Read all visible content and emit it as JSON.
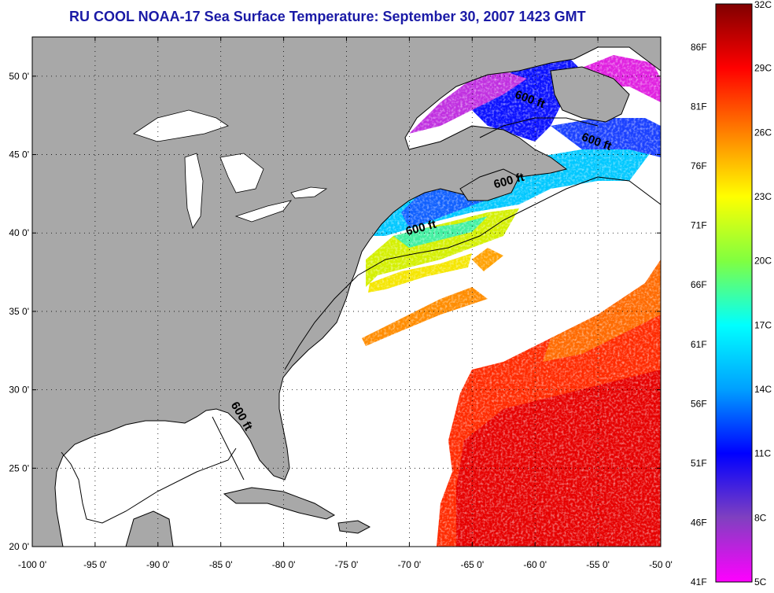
{
  "title": "RU COOL  NOAA-17  Sea Surface Temperature:  September 30, 2007 1423 GMT",
  "colors": {
    "land": "#a8a8a8",
    "nodata": "#ffffff",
    "title": "#1a1aa6"
  },
  "map": {
    "lon_range": [
      -100,
      -50
    ],
    "lat_range": [
      20,
      52.5
    ],
    "x_ticks": [
      "-100 0'",
      "-95 0'",
      "-90 0'",
      "-85 0'",
      "-80 0'",
      "-75 0'",
      "-70 0'",
      "-65 0'",
      "-60 0'",
      "-55 0'",
      "-50 0'"
    ],
    "y_ticks": [
      "50 0'",
      "45 0'",
      "40 0'",
      "35 0'",
      "30 0'",
      "25 0'",
      "20 0'"
    ],
    "contour_labels": [
      {
        "text": "600 ft",
        "lon": -60.5,
        "lat": 48.3,
        "angle": 20
      },
      {
        "text": "600 ft",
        "lon": -55.2,
        "lat": 45.6,
        "angle": 20
      },
      {
        "text": "600 ft",
        "lon": -62.0,
        "lat": 43.1,
        "angle": -15
      },
      {
        "text": "600 ft",
        "lon": -69.0,
        "lat": 40.1,
        "angle": -15
      },
      {
        "text": "600 ft",
        "lon": -83.6,
        "lat": 28.2,
        "angle": 60
      }
    ]
  },
  "colorbar": {
    "left_labels": [
      "86F",
      "81F",
      "76F",
      "71F",
      "66F",
      "61F",
      "56F",
      "51F",
      "46F",
      "41F"
    ],
    "right_labels": [
      "32C",
      "29C",
      "26C",
      "23C",
      "20C",
      "17C",
      "14C",
      "11C",
      "8C",
      "5C"
    ],
    "stops": [
      "#800000",
      "#ff0000",
      "#ff8000",
      "#ffff00",
      "#80ff40",
      "#00ffff",
      "#00a0ff",
      "#0000ff",
      "#8040c0",
      "#ff00ff"
    ]
  }
}
